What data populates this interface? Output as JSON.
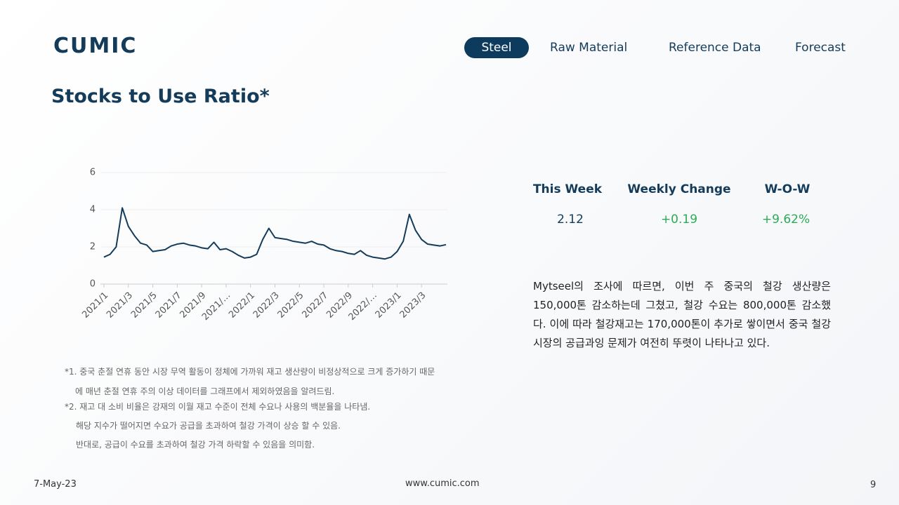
{
  "header": {
    "logo": "CUMIC",
    "nav": [
      "Steel",
      "Raw Material",
      "Reference Data",
      "Forecast"
    ]
  },
  "page_title": "Stocks to Use Ratio*",
  "chart_data": {
    "type": "line",
    "categories": [
      "2021/1",
      null,
      null,
      null,
      "2021/3",
      null,
      null,
      null,
      "2021/5",
      null,
      null,
      null,
      "2021/7",
      null,
      null,
      null,
      "2021/9",
      null,
      null,
      null,
      "2021/…",
      null,
      null,
      null,
      "2022/1",
      null,
      null,
      null,
      "2022/3",
      null,
      null,
      null,
      "2022/5",
      null,
      null,
      null,
      "2022/7",
      null,
      null,
      null,
      "2022/9",
      null,
      null,
      null,
      "2022/…",
      null,
      null,
      null,
      "2023/1",
      null,
      null,
      null,
      "2023/3",
      null,
      null,
      null,
      null
    ],
    "values": [
      1.45,
      1.6,
      2.0,
      4.1,
      3.1,
      2.6,
      2.2,
      2.1,
      1.75,
      1.8,
      1.85,
      2.05,
      2.15,
      2.2,
      2.1,
      2.05,
      1.95,
      1.9,
      2.25,
      1.85,
      1.9,
      1.75,
      1.55,
      1.4,
      1.45,
      1.6,
      2.4,
      3.0,
      2.5,
      2.45,
      2.4,
      2.3,
      2.25,
      2.2,
      2.3,
      2.15,
      2.1,
      1.9,
      1.8,
      1.75,
      1.65,
      1.6,
      1.8,
      1.55,
      1.45,
      1.4,
      1.35,
      1.45,
      1.75,
      2.3,
      3.75,
      2.9,
      2.4,
      2.15,
      2.1,
      2.05,
      2.12
    ],
    "color": "#143c5a",
    "ylim": [
      0,
      6
    ],
    "yticks": [
      0,
      2,
      4,
      6
    ],
    "grid": true
  },
  "stats": {
    "headers": [
      "This Week",
      "Weekly Change",
      "W-O-W"
    ],
    "values": [
      "2.12",
      "+0.19",
      "+9.62%"
    ]
  },
  "paragraph": "Mytseel의 조사에 따르면, 이번 주 중국의 철강 생산량은 150,000톤 감소하는데 그쳤고, 철강 수요는 800,000톤 감소했다. 이에 따라 철강재고는 170,000톤이 추가로 쌓이면서 중국 철강시장의 공급과잉 문제가 여전히 뚜렷이 나타나고 있다.",
  "notes": [
    "*1. 중국 춘절 연휴 동안 시장 무역 활동이 정체에 가까워 재고 생산량이 비정상적으로 크게 증가하기 때문",
    "에 매년 춘절 연휴 주의 이상 데이터를 그래프에서 제외하였음을 알려드림.",
    "*2. 재고 대 소비 비율은 강재의 이월 재고 수준이 전체 수요나 사용의 백분율을 나타냄.",
    "해당 지수가 떨어지면 수요가 공급을 초과하여 철강 가격이 상승 할 수 있음.",
    "반대로, 공급이 수요를 초과하여 철강 가격 하락할 수 있음을 의미함."
  ],
  "footer": {
    "date": "7-May-23",
    "url": "www.cumic.com",
    "page": "9"
  }
}
